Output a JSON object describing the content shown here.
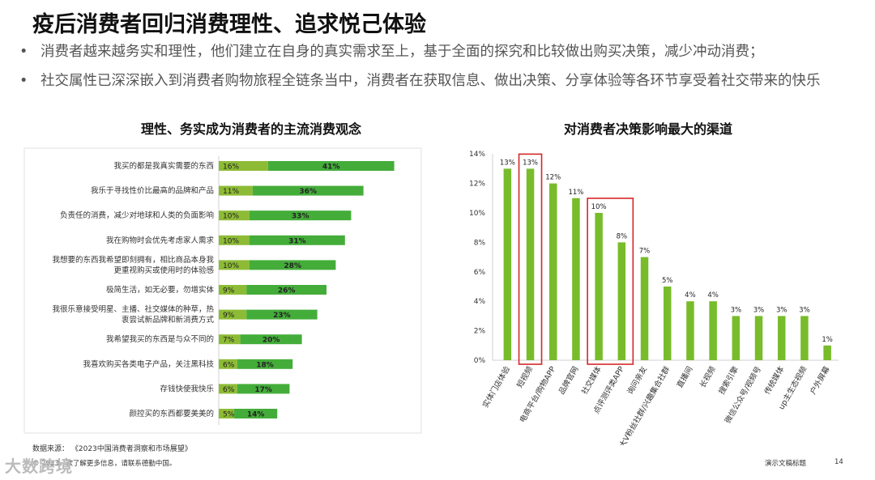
{
  "title": "疫后消费者回归消费理性、追求悦己体验",
  "bullets": [
    "消费者越来越务实和理性，他们建立在自身的真实需求至上，基于全面的探究和比较做出购买决策，减少冲动消费；",
    "社交属性已深深嵌入到消费者购物旅程全链条当中，消费者在获取信息、做出决策、分享体验等各环节享受着社交带来的快乐"
  ],
  "bullet_symbol": "•",
  "chart_data": [
    {
      "type": "bar",
      "orientation": "horizontal",
      "stacked": true,
      "title": "理性、务实成为消费者的主流消费观念",
      "categories": [
        "我买的都是我真实需要的东西",
        "我乐于寻找性价比最高的品牌和产品",
        "负责任的消费，减少对地球和人类的负面影响",
        "我在购物时会优先考虑家人需求",
        "我想要的东西我希望即刻拥有，相比商品本身我更重视购买或使用时的体验感",
        "极简生活，如无必要，勿增实体",
        "我很乐意接受明星、主播、社交媒体的种草，热衷尝试新品牌和新消费方式",
        "我希望我买的东西是与众不同的",
        "我喜欢购买各类电子产品，关注黑科技",
        "存钱快使我快乐",
        "颜控买的东西都要美美的"
      ],
      "category_lines": [
        [
          "我买的都是我真实需要的东西"
        ],
        [
          "我乐于寻找性价比最高的品牌和产品"
        ],
        [
          "负责任的消费，减少对地球和人类的负面影响"
        ],
        [
          "我在购物时会优先考虑家人需求"
        ],
        [
          "我想要的东西我希望即刻拥有，相比商品本身我",
          "更重视购买或使用时的体验感"
        ],
        [
          "极简生活，如无必要，勿增实体"
        ],
        [
          "我很乐意接受明星、主播、社交媒体的种草，热",
          "衷尝试新品牌和新消费方式"
        ],
        [
          "我希望我买的东西是与众不同的"
        ],
        [
          "我喜欢购买各类电子产品，关注黑科技"
        ],
        [
          "存钱快使我快乐"
        ],
        [
          "颜控买的东西都要美美的"
        ]
      ],
      "series": [
        {
          "color": "#8dbb35",
          "values": [
            16,
            11,
            10,
            10,
            10,
            9,
            9,
            7,
            6,
            6,
            5
          ]
        },
        {
          "color": "#44ad3a",
          "values": [
            41,
            36,
            33,
            31,
            28,
            26,
            23,
            20,
            18,
            17,
            14
          ]
        }
      ],
      "labels": [
        [
          "16%",
          "41%"
        ],
        [
          "11%",
          "36%"
        ],
        [
          "10%",
          "33%"
        ],
        [
          "10%",
          "31%"
        ],
        [
          "10%",
          "28%"
        ],
        [
          "9%",
          "26%"
        ],
        [
          "9%",
          "23%"
        ],
        [
          "7%",
          "20%"
        ],
        [
          "6%",
          "18%"
        ],
        [
          "6%",
          "17%"
        ],
        [
          "5%",
          "14%"
        ]
      ],
      "grid": false
    },
    {
      "type": "bar",
      "orientation": "vertical",
      "title": "对消费者决策影响最大的渠道",
      "categories": [
        "实体门店体验",
        "短视频",
        "电商平台/购物APP",
        "品牌官网",
        "社交媒体",
        "点评测评类APP",
        "询问亲友",
        "大V粉丝社群/兴趣集合社群",
        "直播间",
        "长视频",
        "搜索引擎",
        "微信公众号/视频号",
        "传统媒体",
        "up主生态视频",
        "户外屏幕"
      ],
      "values": [
        13,
        13,
        12,
        11,
        10,
        8,
        7,
        5,
        4,
        4,
        3,
        3,
        3,
        3,
        1
      ],
      "value_labels": [
        "13%",
        "13%",
        "12%",
        "11%",
        "10%",
        "8%",
        "7%",
        "5%",
        "4%",
        "4%",
        "3%",
        "3%",
        "3%",
        "3%",
        "1%"
      ],
      "yticks": [
        "0%",
        "2%",
        "4%",
        "6%",
        "8%",
        "10%",
        "12%",
        "14%"
      ],
      "ylim": [
        0,
        14
      ],
      "color": "#78bc2b",
      "highlight_color": "#d62728",
      "highlighted_groups": [
        [
          1
        ],
        [
          4,
          5
        ]
      ],
      "grid": false
    }
  ],
  "footer": {
    "source": "数据来源：  《2023中国消费者洞察和市场展望》",
    "copyright": "© 2023。欲了解更多信息，请联系德勤中国。",
    "doc_title": "演示文稿标题",
    "page": "14",
    "watermark": "大数跨境"
  }
}
